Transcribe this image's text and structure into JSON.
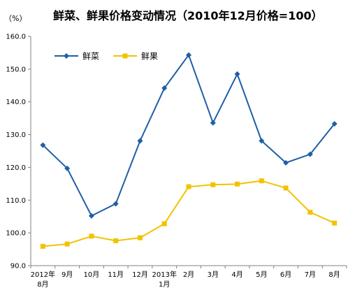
{
  "chart_data": {
    "type": "line",
    "title": "鲜菜、鲜果价格变动情况（2010年12月价格=100）",
    "unit_label": "（%）",
    "categories": [
      [
        "2012年",
        "8月"
      ],
      [
        "9月"
      ],
      [
        "10月"
      ],
      [
        "11月"
      ],
      [
        "12月"
      ],
      [
        "2013年",
        "1月"
      ],
      [
        "2月"
      ],
      [
        "3月"
      ],
      [
        "4月"
      ],
      [
        "5月"
      ],
      [
        "6月"
      ],
      [
        "7月"
      ],
      [
        "8月"
      ]
    ],
    "y_ticks": [
      "90.0",
      "100.0",
      "110.0",
      "120.0",
      "130.0",
      "140.0",
      "150.0",
      "160.0"
    ],
    "ylim": [
      90,
      160
    ],
    "grid": false,
    "legend_position": "top-left",
    "series": [
      {
        "name": "鲜菜",
        "color": "#1F5FA6",
        "marker": "diamond",
        "values": [
          126.8,
          119.7,
          105.2,
          108.9,
          128.1,
          144.2,
          154.3,
          133.6,
          148.5,
          128.1,
          121.4,
          124.0,
          133.3
        ]
      },
      {
        "name": "鲜果",
        "color": "#F2C200",
        "marker": "square",
        "values": [
          95.9,
          96.6,
          99.0,
          97.6,
          98.5,
          102.8,
          114.1,
          114.7,
          114.9,
          115.9,
          113.7,
          106.3,
          103.0
        ]
      }
    ]
  }
}
